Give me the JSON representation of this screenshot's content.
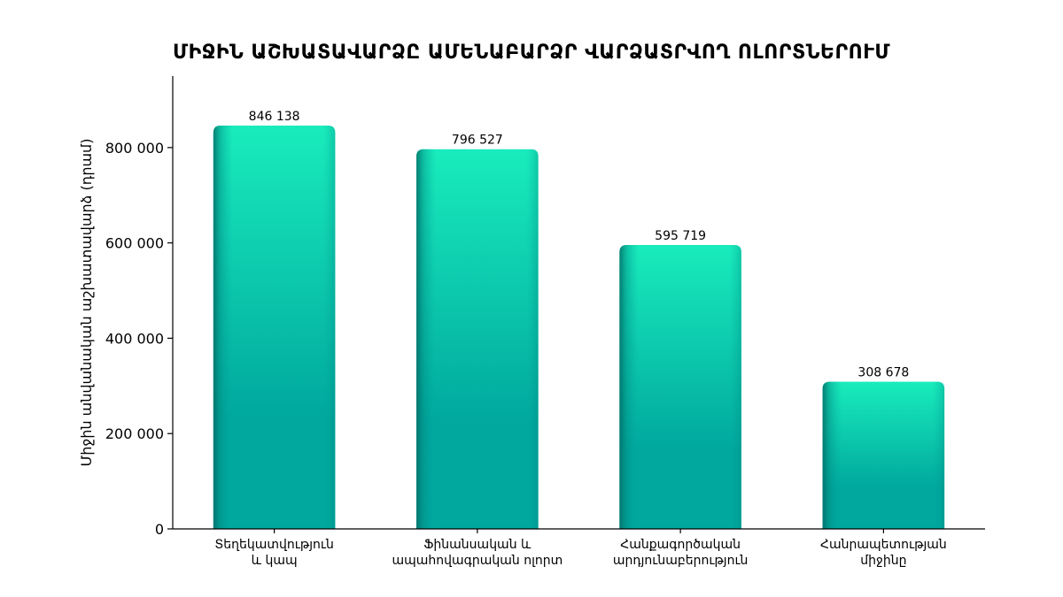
{
  "chart_data": {
    "type": "bar",
    "title": "ՄԻՋԻՆ ԱՇԽԱՏԱՎԱՐՁԸ ԱՄԵՆԱԲԱՐՁՐ ՎԱՐՁԱՏՐՎՈՂ ՈԼՈՐՏՆԵՐՈՒՄ",
    "xlabel": "",
    "ylabel": "Միջին անվանական աշխատավարձ (դրամ)",
    "categories": [
      [
        "Տեղեկատվություն",
        "և կապ"
      ],
      [
        "Ֆինանսական և",
        "ապահովագրական ոլորտ"
      ],
      [
        "Հանքագործական",
        "արդյունաբերություն"
      ],
      [
        "Հանրապետության",
        "միջինը"
      ]
    ],
    "values": [
      846138,
      796527,
      595719,
      308678
    ],
    "value_labels": [
      "846 138",
      "796 527",
      "595 719",
      "308 678"
    ],
    "ylim": [
      0,
      950000
    ],
    "yticks": [
      0,
      200000,
      400000,
      600000,
      800000
    ],
    "ytick_labels": [
      "0",
      "200 000",
      "400 000",
      "600 000",
      "800 000"
    ],
    "bar_color_light": "#19ecbc",
    "bar_color_dark": "#00a89e",
    "bar_color_edge": "#007a72",
    "grid": false,
    "legend": "none"
  }
}
